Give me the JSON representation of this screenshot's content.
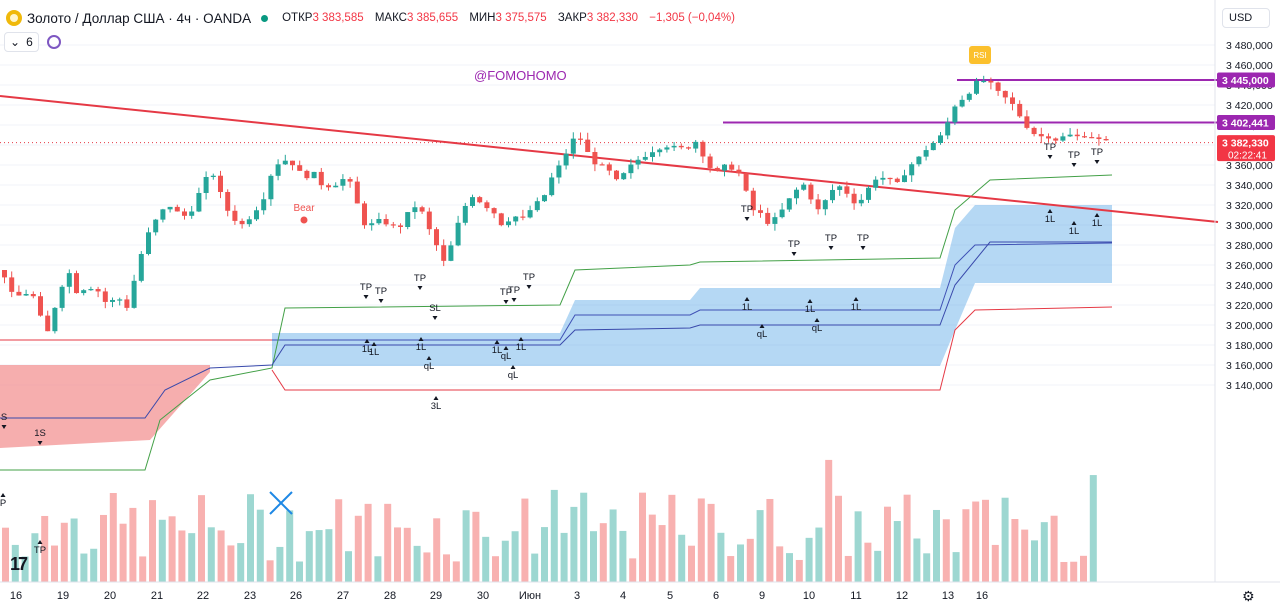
{
  "header": {
    "symbol_title": "Золото / Доллар США · 4ч · OANDA",
    "ohlc": [
      {
        "label": "ОТКР",
        "value": "3 383,585"
      },
      {
        "label": "МАКС",
        "value": "3 385,655"
      },
      {
        "label": "МИН",
        "value": "3 375,575"
      },
      {
        "label": "ЗАКР",
        "value": "3 382,330"
      },
      {
        "label": "",
        "value": "−1,305 (−0,04%)"
      }
    ],
    "indicator_count": "6",
    "currency": "USD"
  },
  "watermark": "@FOMOHOMO",
  "colors": {
    "up": "#26a69a",
    "down": "#ef5350",
    "trend": "#e53945",
    "level": "#9c27b0",
    "band": "#5aa9e6",
    "red_zone": "#f28b8b"
  },
  "chart_data": {
    "type": "candlestick",
    "x_labels": [
      "16",
      "19",
      "20",
      "21",
      "22",
      "23",
      "26",
      "27",
      "28",
      "29",
      "30",
      "Июн",
      "3",
      "4",
      "5",
      "6",
      "9",
      "10",
      "11",
      "12",
      "13",
      "16"
    ],
    "y_ticks": [
      "3 480,000",
      "3 460,000",
      "3 440,000",
      "3 420,000",
      "3 400,000",
      "3 380,000",
      "3 360,000",
      "3 340,000",
      "3 320,000",
      "3 300,000",
      "3 280,000",
      "3 260,000",
      "3 240,000",
      "3 220,000",
      "3 200,000",
      "3 180,000",
      "3 160,000",
      "3 140,000"
    ],
    "ylim": [
      3130,
      3490
    ],
    "price_labels": [
      {
        "value": 3445.0,
        "text": "3 445,000",
        "color": "#9c27b0"
      },
      {
        "value": 3402.441,
        "text": "3 402,441",
        "color": "#9c27b0"
      },
      {
        "value": 3382.33,
        "text": "3 382,330",
        "sub": "02:22:41",
        "color": "#f23645"
      }
    ],
    "anchors": [
      [
        0,
        3255
      ],
      [
        10,
        3228
      ],
      [
        22,
        3230
      ],
      [
        28,
        3238
      ],
      [
        35,
        3213
      ],
      [
        45,
        3192
      ],
      [
        55,
        3228
      ],
      [
        65,
        3256
      ],
      [
        75,
        3232
      ],
      [
        85,
        3240
      ],
      [
        95,
        3235
      ],
      [
        105,
        3220
      ],
      [
        115,
        3228
      ],
      [
        125,
        3218
      ],
      [
        135,
        3258
      ],
      [
        142,
        3282
      ],
      [
        150,
        3300
      ],
      [
        158,
        3310
      ],
      [
        165,
        3322
      ],
      [
        175,
        3312
      ],
      [
        185,
        3308
      ],
      [
        195,
        3328
      ],
      [
        205,
        3348
      ],
      [
        213,
        3352
      ],
      [
        220,
        3322
      ],
      [
        230,
        3308
      ],
      [
        240,
        3300
      ],
      [
        250,
        3312
      ],
      [
        260,
        3325
      ],
      [
        268,
        3350
      ],
      [
        275,
        3362
      ],
      [
        283,
        3365
      ],
      [
        290,
        3362
      ],
      [
        300,
        3348
      ],
      [
        310,
        3352
      ],
      [
        320,
        3340
      ],
      [
        330,
        3340
      ],
      [
        345,
        3348
      ],
      [
        355,
        3320
      ],
      [
        362,
        3302
      ],
      [
        370,
        3300
      ],
      [
        380,
        3305
      ],
      [
        395,
        3295
      ],
      [
        405,
        3310
      ],
      [
        415,
        3322
      ],
      [
        425,
        3300
      ],
      [
        430,
        3285
      ],
      [
        435,
        3278
      ],
      [
        440,
        3260
      ],
      [
        450,
        3282
      ],
      [
        460,
        3315
      ],
      [
        470,
        3330
      ],
      [
        480,
        3322
      ],
      [
        490,
        3315
      ],
      [
        500,
        3300
      ],
      [
        510,
        3310
      ],
      [
        520,
        3305
      ],
      [
        530,
        3318
      ],
      [
        540,
        3325
      ],
      [
        548,
        3345
      ],
      [
        555,
        3355
      ],
      [
        565,
        3375
      ],
      [
        575,
        3392
      ],
      [
        585,
        3372
      ],
      [
        595,
        3360
      ],
      [
        605,
        3355
      ],
      [
        615,
        3342
      ],
      [
        625,
        3355
      ],
      [
        635,
        3365
      ],
      [
        645,
        3372
      ],
      [
        655,
        3378
      ],
      [
        665,
        3380
      ],
      [
        675,
        3375
      ],
      [
        685,
        3378
      ],
      [
        695,
        3385
      ],
      [
        705,
        3360
      ],
      [
        715,
        3352
      ],
      [
        725,
        3360
      ],
      [
        735,
        3355
      ],
      [
        745,
        3328
      ],
      [
        752,
        3312
      ],
      [
        760,
        3310
      ],
      [
        768,
        3300
      ],
      [
        778,
        3312
      ],
      [
        790,
        3330
      ],
      [
        800,
        3342
      ],
      [
        810,
        3325
      ],
      [
        818,
        3310
      ],
      [
        825,
        3330
      ],
      [
        835,
        3340
      ],
      [
        845,
        3332
      ],
      [
        855,
        3320
      ],
      [
        865,
        3335
      ],
      [
        875,
        3350
      ],
      [
        885,
        3345
      ],
      [
        895,
        3340
      ],
      [
        905,
        3358
      ],
      [
        915,
        3365
      ],
      [
        925,
        3378
      ],
      [
        935,
        3385
      ],
      [
        942,
        3392
      ],
      [
        950,
        3418
      ],
      [
        958,
        3425
      ],
      [
        965,
        3432
      ],
      [
        972,
        3440
      ],
      [
        980,
        3445
      ],
      [
        988,
        3440
      ],
      [
        995,
        3432
      ],
      [
        1005,
        3425
      ],
      [
        1012,
        3418
      ],
      [
        1020,
        3405
      ],
      [
        1028,
        3395
      ],
      [
        1036,
        3388
      ],
      [
        1045,
        3390
      ],
      [
        1055,
        3385
      ],
      [
        1065,
        3390
      ],
      [
        1075,
        3388
      ],
      [
        1085,
        3392
      ],
      [
        1095,
        3385
      ],
      [
        1105,
        3382
      ]
    ],
    "trend_line": {
      "from": [
        0,
        3445
      ],
      "to": [
        1218,
        3360
      ]
    },
    "horizontal_levels": [
      {
        "from_x": 957,
        "to_x": 1218,
        "value": 3445.0
      },
      {
        "from_x": 723,
        "to_x": 1218,
        "value": 3402.441
      }
    ],
    "marker_labels": [
      "TP",
      "1L",
      "SL",
      "qL",
      "3L",
      "1S",
      "Bear",
      "RSI"
    ],
    "volume_bars": 112
  }
}
